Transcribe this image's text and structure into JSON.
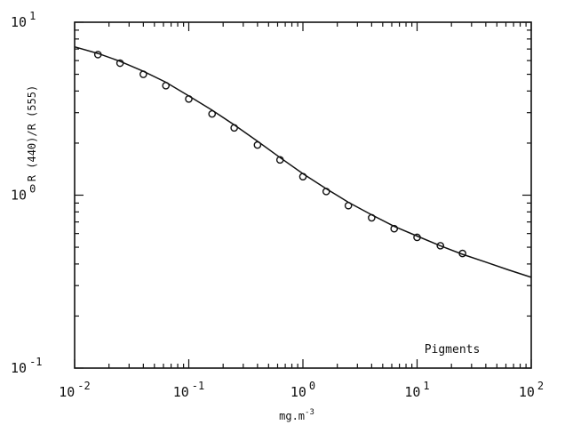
{
  "chart_data": {
    "type": "scatter",
    "title": "",
    "xlabel": "mg.m",
    "xlabel_superscript": "-3",
    "ylabel": "R (440)/R (555)",
    "xscale": "log",
    "yscale": "log",
    "xlim": [
      0.01,
      100
    ],
    "ylim": [
      0.1,
      10
    ],
    "grid": false,
    "annotation": "Pigments",
    "x_ticks": [
      {
        "value": 0.01,
        "base": "10",
        "exp": "-2"
      },
      {
        "value": 0.1,
        "base": "10",
        "exp": "-1"
      },
      {
        "value": 1,
        "base": "10",
        "exp": "0"
      },
      {
        "value": 10,
        "base": "10",
        "exp": "1"
      },
      {
        "value": 100,
        "base": "10",
        "exp": "2"
      }
    ],
    "y_ticks": [
      {
        "value": 0.1,
        "base": "10",
        "exp": "-1"
      },
      {
        "value": 1,
        "base": "10",
        "exp": "0"
      },
      {
        "value": 10,
        "base": "10",
        "exp": "1"
      }
    ],
    "series": [
      {
        "marker": "circle",
        "x": [
          0.016,
          0.025,
          0.04,
          0.063,
          0.1,
          0.16,
          0.25,
          0.4,
          0.63,
          1.0,
          1.6,
          2.5,
          4.0,
          6.3,
          10,
          16,
          25
        ],
        "y": [
          6.5,
          5.8,
          5.0,
          4.3,
          3.6,
          2.95,
          2.45,
          1.95,
          1.6,
          1.28,
          1.05,
          0.87,
          0.74,
          0.64,
          0.57,
          0.51,
          0.46
        ]
      },
      {
        "line": "solid",
        "x": [
          0.01,
          0.016,
          0.025,
          0.04,
          0.063,
          0.1,
          0.16,
          0.25,
          0.4,
          0.63,
          1.0,
          1.6,
          2.5,
          4.0,
          6.3,
          10,
          16,
          25,
          40,
          63,
          100
        ],
        "y": [
          7.2,
          6.6,
          5.95,
          5.2,
          4.5,
          3.75,
          3.1,
          2.55,
          2.05,
          1.65,
          1.33,
          1.09,
          0.91,
          0.77,
          0.66,
          0.58,
          0.51,
          0.455,
          0.41,
          0.37,
          0.335
        ]
      }
    ]
  }
}
